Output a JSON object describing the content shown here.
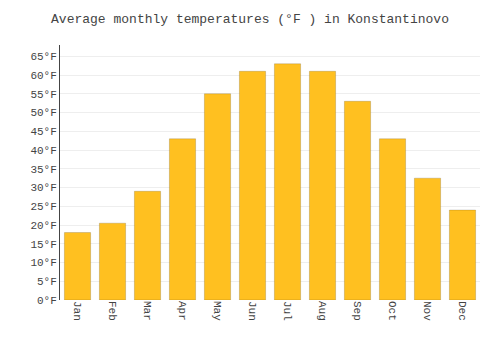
{
  "chart_data": {
    "type": "bar",
    "title": "Average monthly temperatures (°F ) in Konstantinovo",
    "categories": [
      "Jan",
      "Feb",
      "Mar",
      "Apr",
      "May",
      "Jun",
      "Jul",
      "Aug",
      "Sep",
      "Oct",
      "Nov",
      "Dec"
    ],
    "values": [
      18,
      20.5,
      29,
      43,
      55,
      61,
      63,
      61,
      53,
      43,
      32.5,
      24
    ],
    "color": "#FFC020",
    "ylim": [
      0,
      68
    ],
    "yticks": [
      {
        "value": 0,
        "label": "0°F"
      },
      {
        "value": 5,
        "label": "5°F"
      },
      {
        "value": 10,
        "label": "10°F"
      },
      {
        "value": 15,
        "label": "15°F"
      },
      {
        "value": 20,
        "label": "20°F"
      },
      {
        "value": 25,
        "label": "25°F"
      },
      {
        "value": 30,
        "label": "30°F"
      },
      {
        "value": 35,
        "label": "35°F"
      },
      {
        "value": 40,
        "label": "40°F"
      },
      {
        "value": 45,
        "label": "45°F"
      },
      {
        "value": 50,
        "label": "50°F"
      },
      {
        "value": 55,
        "label": "55°F"
      },
      {
        "value": 60,
        "label": "60°F"
      },
      {
        "value": 65,
        "label": "65°F"
      }
    ],
    "grid": true
  }
}
